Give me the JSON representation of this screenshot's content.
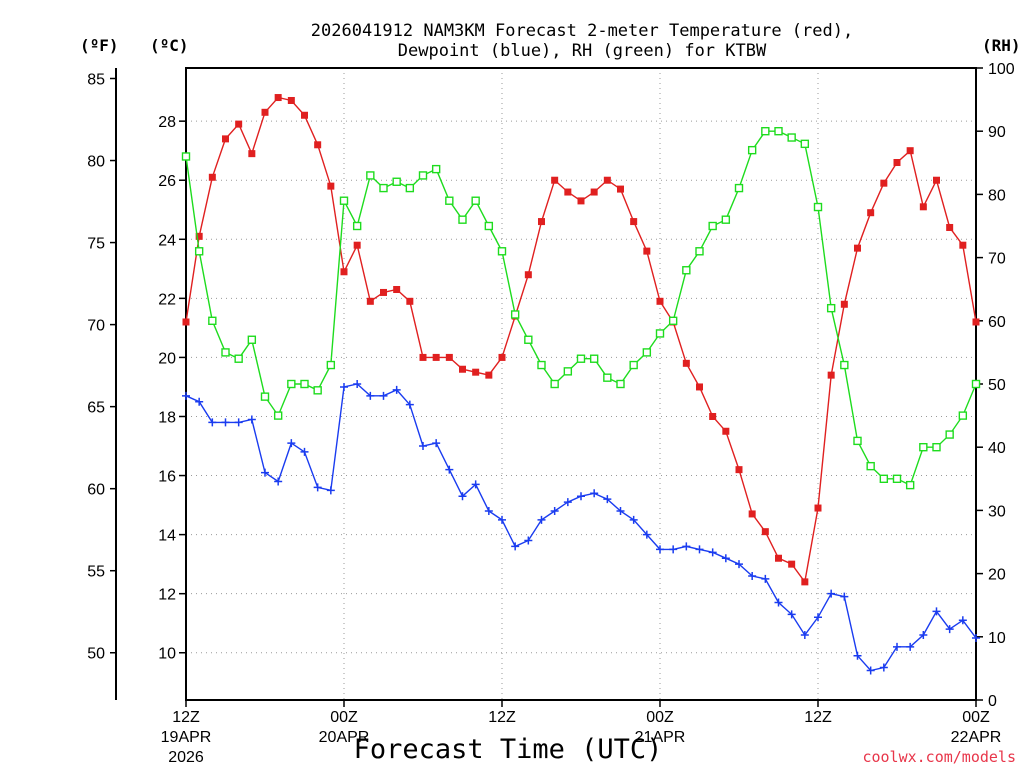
{
  "chart_data": {
    "type": "line",
    "title_line1": "2026041912 NAM3KM Forecast 2-meter Temperature (red),",
    "title_line2": "Dewpoint (blue), RH (green) for KTBW",
    "xlabel": "Forecast Time (UTC)",
    "credit": "coolwx.com/models",
    "units": {
      "f": "(ºF)",
      "c": "(ºC)",
      "rh": "(RH)"
    },
    "x_range_hours": [
      0,
      60
    ],
    "x_ticks": [
      {
        "hour": 0,
        "l1": "12Z",
        "l2": "19APR",
        "l3": "2026"
      },
      {
        "hour": 12,
        "l1": "00Z",
        "l2": "20APR",
        "l3": ""
      },
      {
        "hour": 24,
        "l1": "12Z",
        "l2": "",
        "l3": ""
      },
      {
        "hour": 36,
        "l1": "00Z",
        "l2": "21APR",
        "l3": ""
      },
      {
        "hour": 48,
        "l1": "12Z",
        "l2": "",
        "l3": ""
      },
      {
        "hour": 60,
        "l1": "00Z",
        "l2": "22APR",
        "l3": ""
      }
    ],
    "celsius_axis": {
      "range": [
        8.4,
        29.8
      ],
      "ticks": [
        10,
        12,
        14,
        16,
        18,
        20,
        22,
        24,
        26,
        28
      ]
    },
    "fahrenheit_axis": {
      "ticks": [
        50,
        55,
        60,
        65,
        70,
        75,
        80,
        85
      ]
    },
    "rh_axis": {
      "range": [
        0,
        100
      ],
      "ticks": [
        0,
        10,
        20,
        30,
        40,
        50,
        60,
        70,
        80,
        90,
        100
      ]
    },
    "series": [
      {
        "name": "2-meter Temperature",
        "units": "C",
        "color": "#e02020",
        "marker": "filled-square",
        "values": [
          21.2,
          24.1,
          26.1,
          27.4,
          27.9,
          26.9,
          28.3,
          28.8,
          28.7,
          28.2,
          27.2,
          25.8,
          22.9,
          23.8,
          21.9,
          22.2,
          22.3,
          21.9,
          20.0,
          20.0,
          20.0,
          19.6,
          19.5,
          19.4,
          20.0,
          21.4,
          22.8,
          24.6,
          26.0,
          25.6,
          25.3,
          25.6,
          26.0,
          25.7,
          24.6,
          23.6,
          21.9,
          21.2,
          19.8,
          19.0,
          18.0,
          17.5,
          16.2,
          14.7,
          14.1,
          13.2,
          13.0,
          12.4,
          14.9,
          19.4,
          21.8,
          23.7,
          24.9,
          25.9,
          26.6,
          27.0,
          25.1,
          26.0,
          24.4,
          23.8,
          21.2
        ]
      },
      {
        "name": "Dewpoint",
        "units": "C",
        "color": "#1a3cf0",
        "marker": "plus",
        "values": [
          18.7,
          18.5,
          17.8,
          17.8,
          17.8,
          17.9,
          16.1,
          15.8,
          17.1,
          16.8,
          15.6,
          15.5,
          19.0,
          19.1,
          18.7,
          18.7,
          18.9,
          18.4,
          17.0,
          17.1,
          16.2,
          15.3,
          15.7,
          14.8,
          14.5,
          13.6,
          13.8,
          14.5,
          14.8,
          15.1,
          15.3,
          15.4,
          15.2,
          14.8,
          14.5,
          14.0,
          13.5,
          13.5,
          13.6,
          13.5,
          13.4,
          13.2,
          13.0,
          12.6,
          12.5,
          11.7,
          11.3,
          10.6,
          11.2,
          12.0,
          11.9,
          9.9,
          9.4,
          9.5,
          10.2,
          10.2,
          10.6,
          11.4,
          10.8,
          11.1,
          10.5
        ]
      },
      {
        "name": "RH",
        "units": "%",
        "color": "#1edc1e",
        "marker": "open-square",
        "values": [
          86,
          71,
          60,
          55,
          54,
          57,
          48,
          45,
          50,
          50,
          49,
          53,
          79,
          75,
          83,
          81,
          82,
          81,
          83,
          84,
          79,
          76,
          79,
          75,
          71,
          61,
          57,
          53,
          50,
          52,
          54,
          54,
          51,
          50,
          53,
          55,
          58,
          60,
          68,
          71,
          75,
          76,
          81,
          87,
          90,
          90,
          89,
          88,
          78,
          62,
          53,
          41,
          37,
          35,
          35,
          34,
          40,
          40,
          42,
          45,
          50
        ]
      }
    ]
  }
}
